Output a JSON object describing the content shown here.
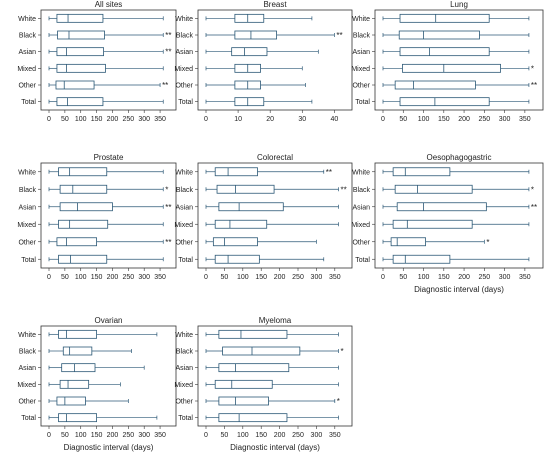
{
  "chart_data": [
    {
      "type": "box",
      "title": "All sites",
      "xlim": [
        0,
        375
      ],
      "xticks": [
        0,
        50,
        100,
        150,
        200,
        250,
        300,
        350
      ],
      "xlabel": "",
      "categories": [
        "White",
        "Black",
        "Asian",
        "Mixed",
        "Other",
        "Total"
      ],
      "boxes": [
        {
          "min": 0,
          "q1": 25,
          "median": 60,
          "q3": 170,
          "max": 360,
          "sig": ""
        },
        {
          "min": 0,
          "q1": 27,
          "median": 63,
          "q3": 175,
          "max": 360,
          "sig": "**"
        },
        {
          "min": 0,
          "q1": 25,
          "median": 55,
          "q3": 172,
          "max": 360,
          "sig": "**"
        },
        {
          "min": 0,
          "q1": 25,
          "median": 55,
          "q3": 178,
          "max": 360,
          "sig": ""
        },
        {
          "min": 0,
          "q1": 22,
          "median": 48,
          "q3": 142,
          "max": 350,
          "sig": "**"
        },
        {
          "min": 0,
          "q1": 25,
          "median": 58,
          "q3": 170,
          "max": 360,
          "sig": ""
        }
      ]
    },
    {
      "type": "box",
      "title": "Breast",
      "xlim": [
        0,
        43
      ],
      "xticks": [
        0,
        10,
        20,
        30,
        40
      ],
      "xlabel": "",
      "categories": [
        "White",
        "Black",
        "Asian",
        "Mixed",
        "Other",
        "Total"
      ],
      "boxes": [
        {
          "min": 0,
          "q1": 9,
          "median": 13,
          "q3": 18,
          "max": 33,
          "sig": ""
        },
        {
          "min": 0,
          "q1": 9,
          "median": 14,
          "q3": 22,
          "max": 40,
          "sig": "**"
        },
        {
          "min": 0,
          "q1": 8,
          "median": 12,
          "q3": 19,
          "max": 35,
          "sig": ""
        },
        {
          "min": 0,
          "q1": 9,
          "median": 13,
          "q3": 17,
          "max": 30,
          "sig": ""
        },
        {
          "min": 0,
          "q1": 9,
          "median": 13,
          "q3": 17,
          "max": 31,
          "sig": ""
        },
        {
          "min": 0,
          "q1": 9,
          "median": 13,
          "q3": 18,
          "max": 33,
          "sig": ""
        }
      ]
    },
    {
      "type": "box",
      "title": "Lung",
      "xlim": [
        0,
        375
      ],
      "xticks": [
        0,
        50,
        100,
        150,
        200,
        250,
        300,
        350
      ],
      "xlabel": "",
      "categories": [
        "White",
        "Black",
        "Asian",
        "Mixed",
        "Other",
        "Total"
      ],
      "boxes": [
        {
          "min": 0,
          "q1": 42,
          "median": 130,
          "q3": 262,
          "max": 360,
          "sig": ""
        },
        {
          "min": 0,
          "q1": 40,
          "median": 100,
          "q3": 238,
          "max": 360,
          "sig": ""
        },
        {
          "min": 0,
          "q1": 42,
          "median": 115,
          "q3": 262,
          "max": 360,
          "sig": ""
        },
        {
          "min": 0,
          "q1": 48,
          "median": 150,
          "q3": 290,
          "max": 360,
          "sig": "*"
        },
        {
          "min": 0,
          "q1": 30,
          "median": 75,
          "q3": 228,
          "max": 360,
          "sig": "**"
        },
        {
          "min": 0,
          "q1": 42,
          "median": 128,
          "q3": 262,
          "max": 360,
          "sig": ""
        }
      ]
    },
    {
      "type": "box",
      "title": "Prostate",
      "xlim": [
        0,
        375
      ],
      "xticks": [
        0,
        50,
        100,
        150,
        200,
        250,
        300,
        350
      ],
      "xlabel": "",
      "categories": [
        "White",
        "Black",
        "Asian",
        "Mixed",
        "Other",
        "Total"
      ],
      "boxes": [
        {
          "min": 0,
          "q1": 30,
          "median": 65,
          "q3": 182,
          "max": 360,
          "sig": ""
        },
        {
          "min": 0,
          "q1": 35,
          "median": 75,
          "q3": 182,
          "max": 360,
          "sig": "*"
        },
        {
          "min": 0,
          "q1": 35,
          "median": 90,
          "q3": 200,
          "max": 360,
          "sig": "**"
        },
        {
          "min": 0,
          "q1": 30,
          "median": 65,
          "q3": 185,
          "max": 360,
          "sig": ""
        },
        {
          "min": 0,
          "q1": 25,
          "median": 55,
          "q3": 150,
          "max": 360,
          "sig": "**"
        },
        {
          "min": 0,
          "q1": 30,
          "median": 68,
          "q3": 182,
          "max": 360,
          "sig": ""
        }
      ]
    },
    {
      "type": "box",
      "title": "Colorectal",
      "xlim": [
        0,
        375
      ],
      "xticks": [
        0,
        50,
        100,
        150,
        200,
        250,
        300,
        350
      ],
      "xlabel": "",
      "categories": [
        "White",
        "Black",
        "Asian",
        "Mixed",
        "Other",
        "Total"
      ],
      "boxes": [
        {
          "min": 0,
          "q1": 25,
          "median": 60,
          "q3": 140,
          "max": 320,
          "sig": "**"
        },
        {
          "min": 0,
          "q1": 30,
          "median": 80,
          "q3": 185,
          "max": 360,
          "sig": "**"
        },
        {
          "min": 0,
          "q1": 35,
          "median": 90,
          "q3": 210,
          "max": 360,
          "sig": ""
        },
        {
          "min": 0,
          "q1": 25,
          "median": 65,
          "q3": 165,
          "max": 360,
          "sig": ""
        },
        {
          "min": 0,
          "q1": 20,
          "median": 50,
          "q3": 140,
          "max": 300,
          "sig": ""
        },
        {
          "min": 0,
          "q1": 25,
          "median": 60,
          "q3": 145,
          "max": 320,
          "sig": ""
        }
      ]
    },
    {
      "type": "box",
      "title": "Oesophagogastric",
      "xlim": [
        0,
        375
      ],
      "xticks": [
        0,
        50,
        100,
        150,
        200,
        250,
        300,
        350
      ],
      "xlabel": "Diagnostic interval (days)",
      "categories": [
        "White",
        "Black",
        "Asian",
        "Mixed",
        "Other",
        "Total"
      ],
      "boxes": [
        {
          "min": 0,
          "q1": 25,
          "median": 55,
          "q3": 165,
          "max": 360,
          "sig": ""
        },
        {
          "min": 0,
          "q1": 30,
          "median": 85,
          "q3": 220,
          "max": 360,
          "sig": "*"
        },
        {
          "min": 0,
          "q1": 35,
          "median": 100,
          "q3": 255,
          "max": 360,
          "sig": "**"
        },
        {
          "min": 0,
          "q1": 25,
          "median": 60,
          "q3": 220,
          "max": 360,
          "sig": ""
        },
        {
          "min": 0,
          "q1": 20,
          "median": 35,
          "q3": 105,
          "max": 250,
          "sig": "*"
        },
        {
          "min": 0,
          "q1": 25,
          "median": 55,
          "q3": 165,
          "max": 360,
          "sig": ""
        }
      ]
    },
    {
      "type": "box",
      "title": "Ovarian",
      "xlim": [
        0,
        375
      ],
      "xticks": [
        0,
        50,
        100,
        150,
        200,
        250,
        300,
        350
      ],
      "xlabel": "Diagnostic interval (days)",
      "categories": [
        "White",
        "Black",
        "Asian",
        "Mixed",
        "Other",
        "Total"
      ],
      "boxes": [
        {
          "min": 0,
          "q1": 30,
          "median": 55,
          "q3": 150,
          "max": 340,
          "sig": ""
        },
        {
          "min": 0,
          "q1": 45,
          "median": 65,
          "q3": 135,
          "max": 260,
          "sig": ""
        },
        {
          "min": 0,
          "q1": 40,
          "median": 80,
          "q3": 145,
          "max": 300,
          "sig": ""
        },
        {
          "min": 0,
          "q1": 35,
          "median": 60,
          "q3": 125,
          "max": 225,
          "sig": ""
        },
        {
          "min": 0,
          "q1": 25,
          "median": 50,
          "q3": 115,
          "max": 250,
          "sig": ""
        },
        {
          "min": 0,
          "q1": 30,
          "median": 55,
          "q3": 150,
          "max": 340,
          "sig": ""
        }
      ]
    },
    {
      "type": "box",
      "title": "Myeloma",
      "xlim": [
        0,
        375
      ],
      "xticks": [
        0,
        50,
        100,
        150,
        200,
        250,
        300,
        350
      ],
      "xlabel": "Diagnostic interval (days)",
      "categories": [
        "White",
        "Black",
        "Asian",
        "Mixed",
        "Other",
        "Total"
      ],
      "boxes": [
        {
          "min": 0,
          "q1": 35,
          "median": 95,
          "q3": 220,
          "max": 360,
          "sig": ""
        },
        {
          "min": 0,
          "q1": 45,
          "median": 125,
          "q3": 255,
          "max": 360,
          "sig": "*"
        },
        {
          "min": 0,
          "q1": 35,
          "median": 80,
          "q3": 225,
          "max": 360,
          "sig": ""
        },
        {
          "min": 0,
          "q1": 25,
          "median": 70,
          "q3": 180,
          "max": 360,
          "sig": ""
        },
        {
          "min": 0,
          "q1": 35,
          "median": 80,
          "q3": 170,
          "max": 350,
          "sig": "*"
        },
        {
          "min": 0,
          "q1": 35,
          "median": 90,
          "q3": 220,
          "max": 360,
          "sig": ""
        }
      ]
    }
  ],
  "colors": {
    "box_stroke": "#2b5876",
    "axis": "#333333",
    "text": "#222222",
    "background": "#ffffff"
  }
}
